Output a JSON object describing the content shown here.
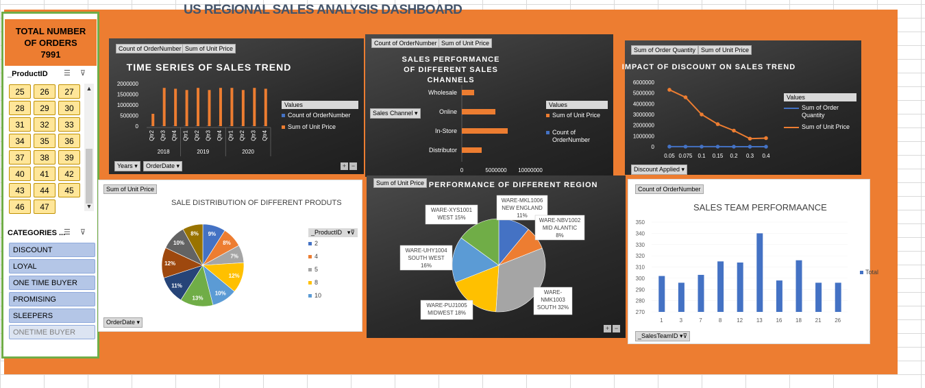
{
  "dashboard": {
    "title": "US REGIONAL SALES ANALYSIS DASHBOARD"
  },
  "colors": {
    "accent": "#ed7d31",
    "blue": "#4472c4",
    "slicer_border": "#70ad47"
  },
  "kpi": {
    "line1": "TOTAL NUMBER",
    "line2": "OF ORDERS",
    "value": "7991"
  },
  "product_slicer": {
    "header": "_ProductID",
    "items": [
      "25",
      "26",
      "27",
      "28",
      "29",
      "30",
      "31",
      "32",
      "33",
      "34",
      "35",
      "36",
      "37",
      "38",
      "39",
      "40",
      "41",
      "42",
      "43",
      "44",
      "45",
      "46",
      "47"
    ],
    "icons": [
      "multi-select-icon",
      "clear-filter-icon"
    ]
  },
  "category_slicer": {
    "header": "CATEGORIES ...",
    "items": [
      "DISCOUNT",
      "LOYAL",
      "ONE TIME BUYER",
      "PROMISING",
      "SLEEPERS",
      "ONETIME BUYER"
    ]
  },
  "time_series": {
    "field_buttons": [
      "Count of OrderNumber",
      "Sum of Unit Price"
    ],
    "axis_buttons": [
      "Years",
      "OrderDate"
    ],
    "legend_title": "Values",
    "legend": [
      "Count of OrderNumber",
      "Sum of Unit Price"
    ]
  },
  "channels": {
    "field_buttons": [
      "Count of OrderNumber",
      "Sum of Unit Price"
    ],
    "axis_button": "Sales Channel",
    "legend_title": "Values",
    "legend": [
      "Sum of Unit Price",
      "Count of OrderNumber"
    ]
  },
  "discount": {
    "field_buttons": [
      "Sum of Order Quantity",
      "Sum of Unit Price"
    ],
    "axis_button": "Discount Applied",
    "legend_title": "Values",
    "legend": [
      "Sum of Order Quantity",
      "Sum of Unit Price"
    ]
  },
  "products": {
    "field_button": "Sum of Unit Price",
    "axis_button": "OrderDate",
    "legend_title": "_ProductID",
    "legend": [
      "2",
      "4",
      "5",
      "8",
      "10"
    ]
  },
  "region": {
    "field_button": "Sum of Unit Price",
    "labels": [
      [
        "WARE-MKL1006",
        "NEW ENGLAND",
        "11%"
      ],
      [
        "WARE-NBV1002",
        "MID ALANTIC",
        "8%"
      ],
      [
        "WARE-",
        "NMK1003",
        "SOUTH 32%"
      ],
      [
        "WARE-PUJ1005",
        "MIDWEST 18%"
      ],
      [
        "WARE-UHY1004",
        "SOUTH WEST",
        "16%"
      ],
      [
        "WARE-XYS1001",
        "WEST 15%"
      ]
    ]
  },
  "team": {
    "field_button": "Count of OrderNumber",
    "axis_button": "_SalesTeamID",
    "legend": [
      "Total"
    ]
  },
  "chart_data": [
    {
      "type": "bar",
      "title": "TIME SERIES OF SALES TREND",
      "categories": [
        "2018 Qtr2",
        "2018 Qtr3",
        "2018 Qtr4",
        "2019 Qtr1",
        "2019 Qtr2",
        "2019 Qtr3",
        "2019 Qtr4",
        "2020 Qtr1",
        "2020 Qtr2",
        "2020 Qtr3",
        "2020 Qtr4"
      ],
      "tick_labels": [
        "Qtr2",
        "Qtr3",
        "Qtr4",
        "Qtr1",
        "Qtr2",
        "Qtr3",
        "Qtr4",
        "Qtr1",
        "Qtr2",
        "Qtr3",
        "Qtr4"
      ],
      "groups": [
        "2018",
        "2019",
        "2020"
      ],
      "series": [
        {
          "name": "Count of OrderNumber",
          "values": [
            230,
            730,
            720,
            690,
            730,
            680,
            730,
            730,
            690,
            730,
            730
          ]
        },
        {
          "name": "Sum of Unit Price",
          "values": [
            580000,
            1800000,
            1760000,
            1700000,
            1800000,
            1700000,
            1800000,
            1800000,
            1700000,
            1800000,
            1760000
          ]
        }
      ],
      "ylim": [
        0,
        2000000
      ],
      "yticks": [
        "2000000",
        "1500000",
        "1000000",
        "500000",
        "0"
      ]
    },
    {
      "type": "bar",
      "title": "SALES PERFORMANCE OF DIFFERENT SALES CHANNELS",
      "orientation": "horizontal",
      "categories": [
        "Wholesale",
        "Online",
        "In-Store",
        "Distributor"
      ],
      "series": [
        {
          "name": "Sum of Unit Price",
          "values": [
            1800000,
            4900000,
            6700000,
            2900000
          ]
        },
        {
          "name": "Count of OrderNumber",
          "values": [
            1000,
            2400,
            3300,
            1400
          ]
        }
      ],
      "xlim": [
        0,
        10000000
      ],
      "xticks": [
        "0",
        "5000000",
        "10000000"
      ]
    },
    {
      "type": "line",
      "title": "IMPACT OF DISCOUNT  ON SALES TREND",
      "categories": [
        "0.05",
        "0.075",
        "0.1",
        "0.15",
        "0.2",
        "0.3",
        "0.4"
      ],
      "series": [
        {
          "name": "Sum of Order Quantity",
          "values": [
            9000,
            7500,
            5500,
            4000,
            3000,
            1700,
            1600
          ]
        },
        {
          "name": "Sum of Unit Price",
          "values": [
            5300000,
            4600000,
            3000000,
            2100000,
            1500000,
            750000,
            800000
          ]
        }
      ],
      "ylim": [
        0,
        6000000
      ],
      "yticks": [
        "6000000",
        "5000000",
        "4000000",
        "3000000",
        "2000000",
        "1000000",
        "0"
      ]
    },
    {
      "type": "pie",
      "title": "SALE DISTRIBUTION OF DIFFERENT PRODUTS",
      "slices": [
        {
          "label": "9%",
          "value": 9,
          "color": "#4472c4"
        },
        {
          "label": "8%",
          "value": 8,
          "color": "#ed7d31"
        },
        {
          "label": "7%",
          "value": 7,
          "color": "#a5a5a5"
        },
        {
          "label": "12%",
          "value": 12,
          "color": "#ffc000"
        },
        {
          "label": "10%",
          "value": 10,
          "color": "#5b9bd5"
        },
        {
          "label": "13%",
          "value": 13,
          "color": "#70ad47"
        },
        {
          "label": "11%",
          "value": 11,
          "color": "#264478"
        },
        {
          "label": "12%",
          "value": 12,
          "color": "#9e480e"
        },
        {
          "label": "10%",
          "value": 10,
          "color": "#636363"
        },
        {
          "label": "8%",
          "value": 8,
          "color": "#997300"
        }
      ]
    },
    {
      "type": "pie",
      "title": "SALES PERFORMANCE OF DIFFERENT REGION",
      "slices": [
        {
          "label": "NEW ENGLAND",
          "value": 11,
          "color": "#4472c4"
        },
        {
          "label": "MID ALANTIC",
          "value": 8,
          "color": "#ed7d31"
        },
        {
          "label": "SOUTH",
          "value": 32,
          "color": "#a5a5a5"
        },
        {
          "label": "MIDWEST",
          "value": 18,
          "color": "#ffc000"
        },
        {
          "label": "SOUTH WEST",
          "value": 16,
          "color": "#5b9bd5"
        },
        {
          "label": "WEST",
          "value": 15,
          "color": "#70ad47"
        }
      ]
    },
    {
      "type": "bar",
      "title": "SALES TEAM PERFORMAANCE",
      "categories": [
        "1",
        "3",
        "7",
        "8",
        "12",
        "13",
        "16",
        "18",
        "21",
        "26"
      ],
      "series": [
        {
          "name": "Total",
          "values": [
            302,
            296,
            303,
            315,
            314,
            340,
            298,
            316,
            296,
            296
          ]
        }
      ],
      "ylim": [
        270,
        350
      ],
      "yticks": [
        "350",
        "340",
        "330",
        "320",
        "310",
        "300",
        "290",
        "280",
        "270"
      ]
    }
  ]
}
